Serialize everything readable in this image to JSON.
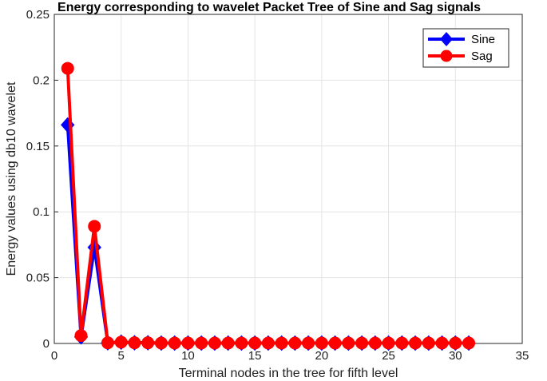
{
  "chart_data": {
    "type": "line",
    "title": "Energy corresponding to wavelet Packet Tree of Sine and Sag signals",
    "xlabel": "Terminal nodes in the tree for fifth level",
    "ylabel": "Energy values using db10 wavelet",
    "xlim": [
      0,
      35
    ],
    "ylim": [
      0,
      0.25
    ],
    "xticks": [
      0,
      5,
      10,
      15,
      20,
      25,
      30,
      35
    ],
    "yticks": [
      0,
      0.05,
      0.1,
      0.15,
      0.2,
      0.25
    ],
    "xtick_labels": [
      "0",
      "5",
      "10",
      "15",
      "20",
      "25",
      "30",
      "35"
    ],
    "ytick_labels": [
      "0",
      "0.05",
      "0.1",
      "0.15",
      "0.2",
      "0.25"
    ],
    "grid": true,
    "legend_position": "top-right",
    "x": [
      1,
      2,
      3,
      4,
      5,
      6,
      7,
      8,
      9,
      10,
      11,
      12,
      13,
      14,
      15,
      16,
      17,
      18,
      19,
      20,
      21,
      22,
      23,
      24,
      25,
      26,
      27,
      28,
      29,
      30,
      31
    ],
    "series": [
      {
        "name": "Sine",
        "color": "#0000ff",
        "marker": "diamond",
        "values": [
          0.166,
          0.005,
          0.073,
          0.0005,
          0.001,
          0.0005,
          0.0005,
          0.0003,
          0.0003,
          0.0003,
          0.0003,
          0.0003,
          0.0003,
          0.0003,
          0.0003,
          0.0003,
          0.0003,
          0.0003,
          0.0003,
          0.0003,
          0.0003,
          0.0003,
          0.0003,
          0.0003,
          0.0003,
          0.0003,
          0.0003,
          0.0003,
          0.0003,
          0.0003,
          0.0003
        ]
      },
      {
        "name": "Sag",
        "color": "#ff0000",
        "marker": "circle",
        "values": [
          0.209,
          0.006,
          0.089,
          0.0005,
          0.001,
          0.0005,
          0.0005,
          0.0003,
          0.0003,
          0.0003,
          0.0003,
          0.0003,
          0.0003,
          0.0003,
          0.0003,
          0.0003,
          0.0003,
          0.0003,
          0.0003,
          0.0003,
          0.0003,
          0.0003,
          0.0003,
          0.0003,
          0.0003,
          0.0003,
          0.0003,
          0.0003,
          0.0003,
          0.0003,
          0.0003
        ]
      }
    ]
  }
}
